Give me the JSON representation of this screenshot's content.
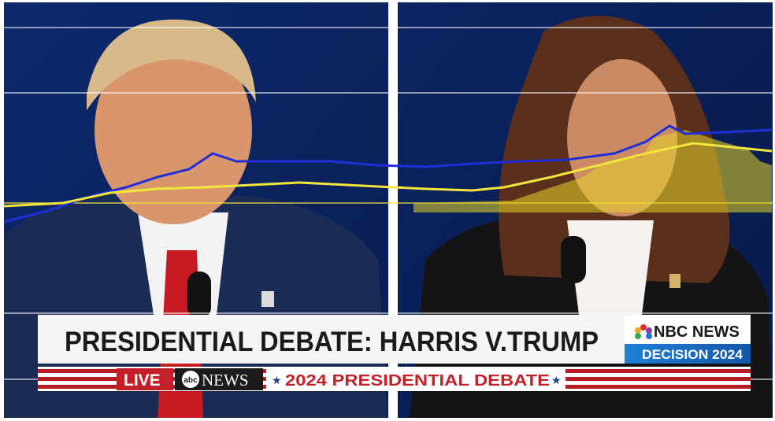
{
  "banner": {
    "headline": "PRESIDENTIAL DEBATE: HARRIS V.TRUMP",
    "network": "NBC NEWS",
    "decision": "DECISION 2024"
  },
  "ticker": {
    "live": "LIVE",
    "channel": "NEWS",
    "event": "2024 PRESIDENTIAL DEBATE"
  }
}
